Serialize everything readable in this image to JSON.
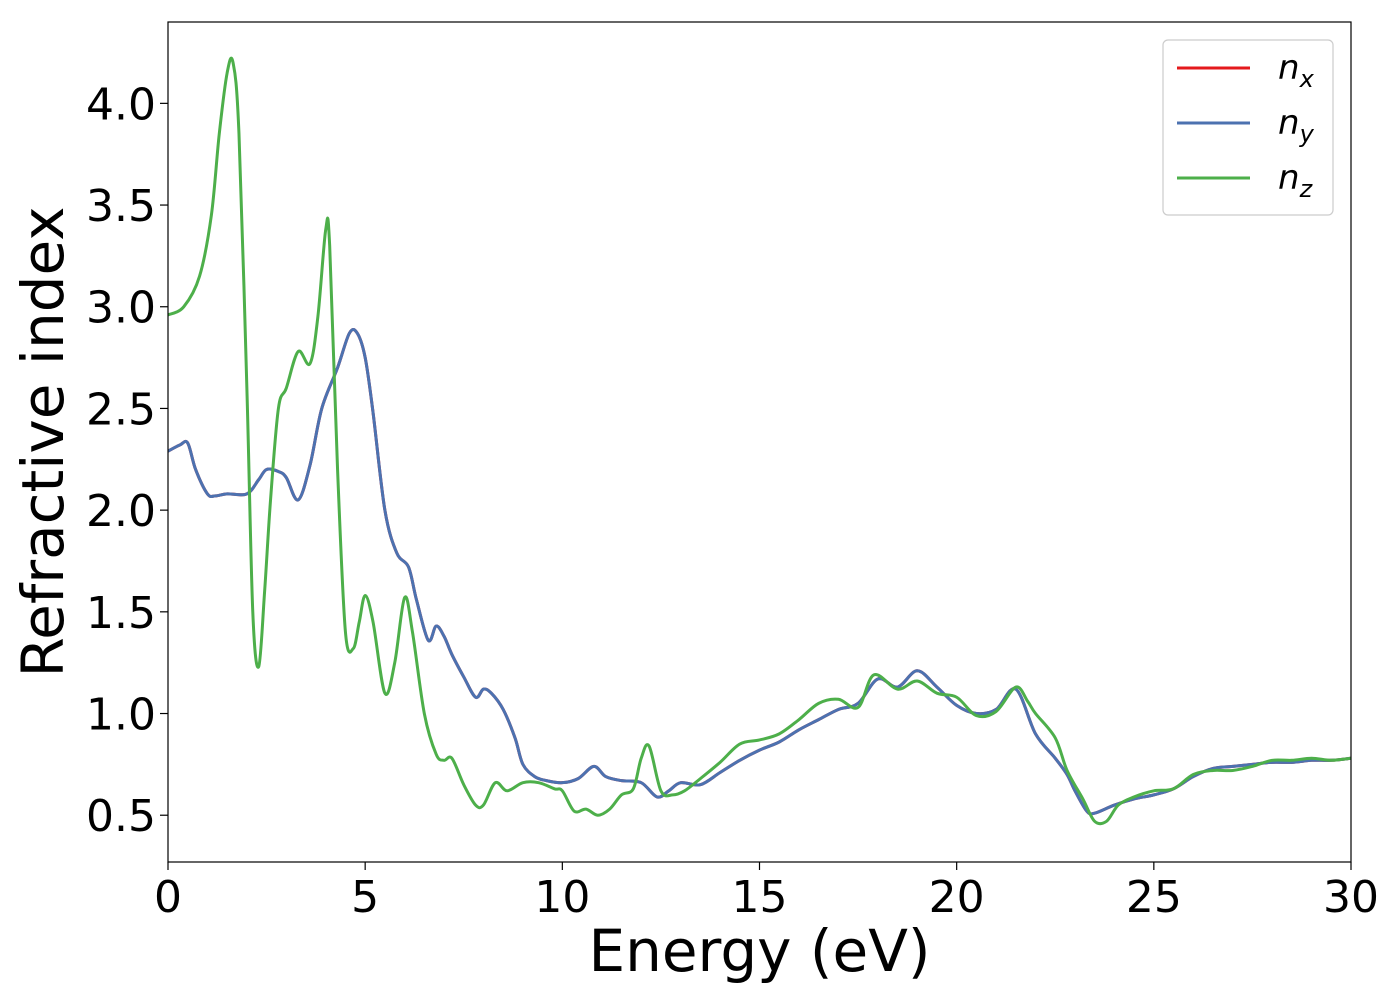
{
  "chart_data": {
    "type": "line",
    "title": "",
    "xlabel": "Energy (eV)",
    "ylabel": "Refractive index",
    "xlim": [
      0,
      30
    ],
    "ylim": [
      0.27,
      4.4
    ],
    "xticks": [
      0,
      5,
      10,
      15,
      20,
      25,
      30
    ],
    "xtick_labels": [
      "0",
      "5",
      "10",
      "15",
      "20",
      "25",
      "30"
    ],
    "yticks": [
      0.5,
      1.0,
      1.5,
      2.0,
      2.5,
      3.0,
      3.5,
      4.0
    ],
    "ytick_labels": [
      "0.5",
      "1.0",
      "1.5",
      "2.0",
      "2.5",
      "3.0",
      "3.5",
      "4.0"
    ],
    "grid": false,
    "legend_position": "top-right",
    "colors": {
      "nx": "#e41a1c",
      "ny": "#4c72b0",
      "nz": "#4daf4a"
    },
    "series": [
      {
        "name": "n_x",
        "legend_base": "n",
        "legend_sub": "x",
        "color": "#e41a1c",
        "x": [
          0,
          0.3,
          0.5,
          0.7,
          1.0,
          1.2,
          1.5,
          2.0,
          2.3,
          2.5,
          2.8,
          3.0,
          3.3,
          3.6,
          3.9,
          4.3,
          4.6,
          4.8,
          5.0,
          5.2,
          5.5,
          5.8,
          6.1,
          6.3,
          6.6,
          6.8,
          7.0,
          7.2,
          7.5,
          7.8,
          8.0,
          8.2,
          8.5,
          8.8,
          9.0,
          9.3,
          9.6,
          10.0,
          10.4,
          10.8,
          11.1,
          11.5,
          12.0,
          12.4,
          12.7,
          13.0,
          13.5,
          14.0,
          14.5,
          15.0,
          15.5,
          16.0,
          16.5,
          17.0,
          17.5,
          18.0,
          18.5,
          19.0,
          19.5,
          20.0,
          20.5,
          21.0,
          21.5,
          22.0,
          22.5,
          22.8,
          23.0,
          23.3,
          23.5,
          24.0,
          24.5,
          25.0,
          25.5,
          26.0,
          26.5,
          27.0,
          27.5,
          28.0,
          28.5,
          29.0,
          29.5,
          30.0
        ],
        "y": [
          2.29,
          2.32,
          2.33,
          2.2,
          2.08,
          2.07,
          2.08,
          2.08,
          2.15,
          2.2,
          2.19,
          2.16,
          2.05,
          2.22,
          2.5,
          2.7,
          2.87,
          2.87,
          2.75,
          2.48,
          2.0,
          1.79,
          1.72,
          1.56,
          1.36,
          1.43,
          1.38,
          1.29,
          1.18,
          1.08,
          1.12,
          1.1,
          1.02,
          0.88,
          0.75,
          0.69,
          0.67,
          0.66,
          0.68,
          0.74,
          0.69,
          0.67,
          0.66,
          0.59,
          0.62,
          0.66,
          0.65,
          0.71,
          0.77,
          0.82,
          0.86,
          0.92,
          0.97,
          1.02,
          1.05,
          1.17,
          1.13,
          1.21,
          1.13,
          1.04,
          1.0,
          1.02,
          1.12,
          0.9,
          0.78,
          0.7,
          0.62,
          0.52,
          0.51,
          0.55,
          0.58,
          0.6,
          0.63,
          0.69,
          0.73,
          0.74,
          0.75,
          0.76,
          0.76,
          0.77,
          0.77,
          0.78
        ]
      },
      {
        "name": "n_y",
        "legend_base": "n",
        "legend_sub": "y",
        "color": "#4c72b0",
        "x": [
          0,
          0.3,
          0.5,
          0.7,
          1.0,
          1.2,
          1.5,
          2.0,
          2.3,
          2.5,
          2.8,
          3.0,
          3.3,
          3.6,
          3.9,
          4.3,
          4.6,
          4.8,
          5.0,
          5.2,
          5.5,
          5.8,
          6.1,
          6.3,
          6.6,
          6.8,
          7.0,
          7.2,
          7.5,
          7.8,
          8.0,
          8.2,
          8.5,
          8.8,
          9.0,
          9.3,
          9.6,
          10.0,
          10.4,
          10.8,
          11.1,
          11.5,
          12.0,
          12.4,
          12.7,
          13.0,
          13.5,
          14.0,
          14.5,
          15.0,
          15.5,
          16.0,
          16.5,
          17.0,
          17.5,
          18.0,
          18.5,
          19.0,
          19.5,
          20.0,
          20.5,
          21.0,
          21.5,
          22.0,
          22.5,
          22.8,
          23.0,
          23.3,
          23.5,
          24.0,
          24.5,
          25.0,
          25.5,
          26.0,
          26.5,
          27.0,
          27.5,
          28.0,
          28.5,
          29.0,
          29.5,
          30.0
        ],
        "y": [
          2.29,
          2.32,
          2.33,
          2.2,
          2.08,
          2.07,
          2.08,
          2.08,
          2.15,
          2.2,
          2.19,
          2.16,
          2.05,
          2.22,
          2.5,
          2.7,
          2.87,
          2.87,
          2.75,
          2.48,
          2.0,
          1.79,
          1.72,
          1.56,
          1.36,
          1.43,
          1.38,
          1.29,
          1.18,
          1.08,
          1.12,
          1.1,
          1.02,
          0.88,
          0.75,
          0.69,
          0.67,
          0.66,
          0.68,
          0.74,
          0.69,
          0.67,
          0.66,
          0.59,
          0.62,
          0.66,
          0.65,
          0.71,
          0.77,
          0.82,
          0.86,
          0.92,
          0.97,
          1.02,
          1.05,
          1.17,
          1.13,
          1.21,
          1.13,
          1.04,
          1.0,
          1.02,
          1.12,
          0.9,
          0.78,
          0.7,
          0.62,
          0.52,
          0.51,
          0.55,
          0.58,
          0.6,
          0.63,
          0.69,
          0.73,
          0.74,
          0.75,
          0.76,
          0.76,
          0.77,
          0.77,
          0.78
        ]
      },
      {
        "name": "n_z",
        "legend_base": "n",
        "legend_sub": "z",
        "color": "#4daf4a",
        "x": [
          0,
          0.4,
          0.8,
          1.1,
          1.3,
          1.5,
          1.65,
          1.8,
          2.0,
          2.15,
          2.3,
          2.45,
          2.6,
          2.8,
          3.0,
          3.3,
          3.6,
          3.8,
          4.0,
          4.1,
          4.3,
          4.5,
          4.7,
          4.85,
          5.0,
          5.2,
          5.5,
          5.75,
          6.0,
          6.2,
          6.5,
          6.8,
          7.0,
          7.2,
          7.5,
          7.8,
          8.0,
          8.3,
          8.6,
          9.0,
          9.4,
          9.8,
          10.0,
          10.3,
          10.6,
          10.9,
          11.2,
          11.5,
          11.8,
          12.0,
          12.2,
          12.5,
          12.8,
          13.1,
          13.5,
          14.0,
          14.5,
          15.0,
          15.5,
          16.0,
          16.5,
          17.0,
          17.5,
          17.9,
          18.5,
          19.0,
          19.5,
          20.0,
          20.5,
          21.0,
          21.5,
          21.8,
          22.0,
          22.5,
          22.8,
          23.2,
          23.5,
          23.8,
          24.1,
          24.5,
          25.0,
          25.5,
          26.0,
          26.5,
          27.0,
          27.5,
          28.0,
          28.5,
          29.0,
          29.5,
          30.0
        ],
        "y": [
          2.96,
          3.0,
          3.15,
          3.45,
          3.85,
          4.15,
          4.2,
          3.85,
          2.6,
          1.5,
          1.23,
          1.6,
          2.05,
          2.5,
          2.6,
          2.78,
          2.72,
          2.95,
          3.38,
          3.3,
          2.2,
          1.4,
          1.32,
          1.45,
          1.58,
          1.45,
          1.1,
          1.25,
          1.57,
          1.4,
          1.0,
          0.8,
          0.77,
          0.78,
          0.65,
          0.55,
          0.55,
          0.66,
          0.62,
          0.66,
          0.66,
          0.63,
          0.62,
          0.52,
          0.53,
          0.5,
          0.53,
          0.6,
          0.63,
          0.78,
          0.84,
          0.62,
          0.6,
          0.62,
          0.68,
          0.76,
          0.85,
          0.87,
          0.9,
          0.97,
          1.05,
          1.07,
          1.03,
          1.19,
          1.12,
          1.16,
          1.1,
          1.08,
          0.99,
          1.01,
          1.13,
          1.06,
          1.0,
          0.88,
          0.72,
          0.58,
          0.47,
          0.47,
          0.55,
          0.59,
          0.62,
          0.63,
          0.7,
          0.72,
          0.72,
          0.74,
          0.77,
          0.77,
          0.78,
          0.77,
          0.78
        ]
      }
    ]
  }
}
